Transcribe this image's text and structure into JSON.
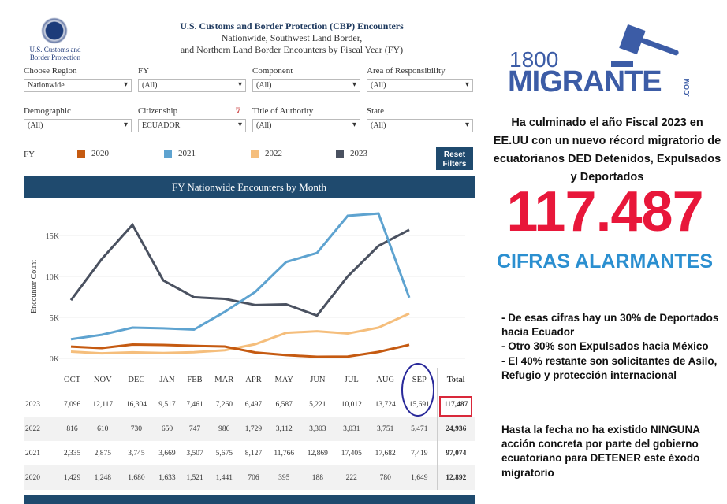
{
  "header": {
    "agency": "U.S. Customs and Border Protection",
    "title": "U.S. Customs and Border Protection (CBP) Encounters",
    "subtitle1": "Nationwide, Southwest Land Border,",
    "subtitle2": "and Northern Land Border Encounters by Fiscal Year (FY)"
  },
  "filters": [
    {
      "label": "Choose Region",
      "value": "Nationwide"
    },
    {
      "label": "FY",
      "value": "(All)"
    },
    {
      "label": "Component",
      "value": "(All)"
    },
    {
      "label": "Area of Responsibility",
      "value": "(All)"
    },
    {
      "label": "Demographic",
      "value": "(All)"
    },
    {
      "label": "Citizenship",
      "value": "ECUADOR"
    },
    {
      "label": "Title of Authority",
      "value": "(All)"
    },
    {
      "label": "State",
      "value": "(All)"
    }
  ],
  "legend": {
    "label": "FY",
    "items": [
      {
        "name": "2020",
        "color": "#c55a11"
      },
      {
        "name": "2021",
        "color": "#5ea3d0"
      },
      {
        "name": "2022",
        "color": "#f5be7c"
      },
      {
        "name": "2023",
        "color": "#4a5160"
      }
    ]
  },
  "reset_label": "Reset Filters",
  "chart_title": "FY Nationwide Encounters by Month",
  "chart_data": {
    "type": "line",
    "title": "FY Nationwide Encounters by Month",
    "ylabel": "Encounter Count",
    "xlabel": "",
    "categories": [
      "OCT",
      "NOV",
      "DEC",
      "JAN",
      "FEB",
      "MAR",
      "APR",
      "MAY",
      "JUN",
      "JUL",
      "AUG",
      "SEP"
    ],
    "yticks": [
      "0K",
      "5K",
      "10K",
      "15K"
    ],
    "ylim": [
      0,
      15000
    ],
    "grid": true,
    "series": [
      {
        "name": "2023",
        "color": "#4a5160",
        "values": [
          7096,
          12117,
          16304,
          9517,
          7461,
          7260,
          6497,
          6587,
          5221,
          10012,
          13724,
          15691
        ]
      },
      {
        "name": "2022",
        "color": "#f5be7c",
        "values": [
          816,
          610,
          730,
          650,
          747,
          986,
          1729,
          3112,
          3303,
          3031,
          3751,
          5471
        ]
      },
      {
        "name": "2021",
        "color": "#5ea3d0",
        "values": [
          2335,
          2875,
          3745,
          3669,
          3507,
          5675,
          8127,
          11766,
          12869,
          17405,
          17682,
          7419
        ]
      },
      {
        "name": "2020",
        "color": "#c55a11",
        "values": [
          1429,
          1248,
          1680,
          1633,
          1521,
          1441,
          706,
          395,
          188,
          222,
          780,
          1649
        ]
      }
    ]
  },
  "table": {
    "total_label": "Total",
    "rows": [
      {
        "year": "2023",
        "values": [
          "7,096",
          "12,117",
          "16,304",
          "9,517",
          "7,461",
          "7,260",
          "6,497",
          "6,587",
          "5,221",
          "10,012",
          "13,724",
          "15,691"
        ],
        "total": "117,487"
      },
      {
        "year": "2022",
        "values": [
          "816",
          "610",
          "730",
          "650",
          "747",
          "986",
          "1,729",
          "3,112",
          "3,303",
          "3,031",
          "3,751",
          "5,471"
        ],
        "total": "24,936"
      },
      {
        "year": "2021",
        "values": [
          "2,335",
          "2,875",
          "3,745",
          "3,669",
          "3,507",
          "5,675",
          "8,127",
          "11,766",
          "12,869",
          "17,405",
          "17,682",
          "7,419"
        ],
        "total": "97,074"
      },
      {
        "year": "2020",
        "values": [
          "1,429",
          "1,248",
          "1,680",
          "1,633",
          "1,521",
          "1,441",
          "706",
          "395",
          "188",
          "222",
          "780",
          "1,649"
        ],
        "total": "12,892"
      }
    ]
  },
  "right": {
    "logo_top": "1800",
    "logo_main": "MIGRANTE",
    "logo_suffix": ".COM",
    "intro": "Ha culminado el año Fiscal 2023 en EE.UU con un nuevo récord migratorio de ecuatorianos DED Detenidos, Expulsados y Deportados",
    "big_number": "117.487",
    "alert": "CIFRAS ALARMANTES",
    "bullets": [
      "- De esas cifras hay un 30% de Deportados hacia Ecuador",
      "- Otro 30% son Expulsados hacia México",
      "- El 40% restante son solicitantes de Asilo, Refugio y protección internacional"
    ],
    "closing": "Hasta la fecha no ha existido NINGUNA acción concreta por parte del gobierno ecuatoriano para DETENER este éxodo migratorio",
    "accent_red": "#e8173a",
    "accent_blue": "#2b8fd0",
    "brand_blue": "#3c5ca6"
  }
}
